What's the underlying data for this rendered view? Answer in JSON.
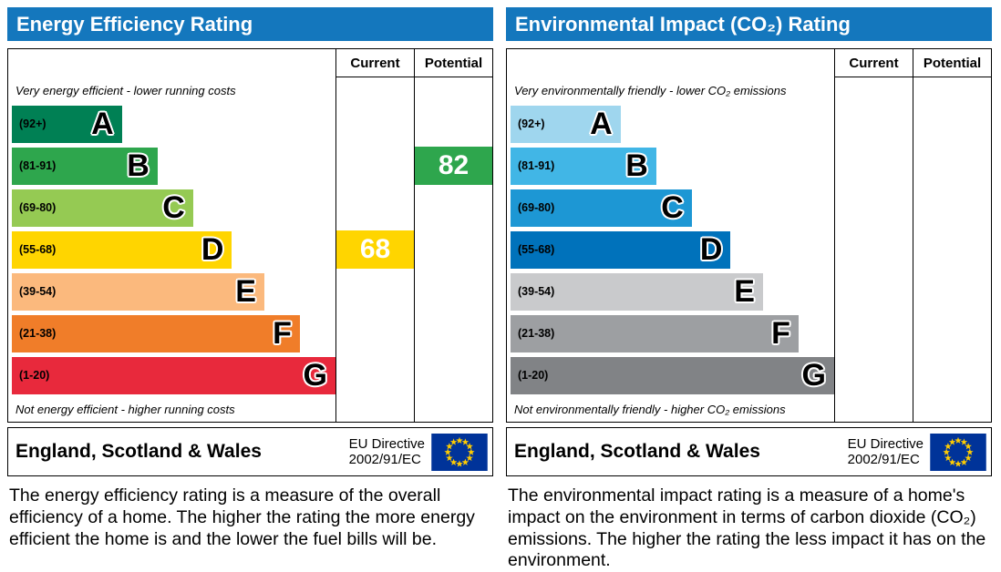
{
  "colors": {
    "header_blue": "#1477bd",
    "flag_background": "#003399",
    "flag_stars": "#ffcc00"
  },
  "charts": [
    {
      "title": "Energy Efficiency Rating",
      "current_label": "Current",
      "potential_label": "Potential",
      "top_caption": "Very energy efficient - lower running costs",
      "bottom_caption": "Not energy efficient - higher running costs",
      "bands": [
        {
          "range": "(92+)",
          "letter": "A",
          "color": "#008054",
          "width_pct": 34
        },
        {
          "range": "(81-91)",
          "letter": "B",
          "color": "#2ea64d",
          "width_pct": 45
        },
        {
          "range": "(69-80)",
          "letter": "C",
          "color": "#95ca53",
          "width_pct": 56
        },
        {
          "range": "(55-68)",
          "letter": "D",
          "color": "#ffd500",
          "width_pct": 68
        },
        {
          "range": "(39-54)",
          "letter": "E",
          "color": "#fbb97d",
          "width_pct": 78
        },
        {
          "range": "(21-38)",
          "letter": "F",
          "color": "#f07d29",
          "width_pct": 89
        },
        {
          "range": "(1-20)",
          "letter": "G",
          "color": "#e8293c",
          "width_pct": 100
        }
      ],
      "current_indicator": {
        "value": "68",
        "band_index": 3,
        "band": "D",
        "color": "#ffd500"
      },
      "potential_indicator": {
        "value": "82",
        "band_index": 1,
        "band": "B",
        "color": "#2ea64d"
      },
      "footer_region": "England, Scotland & Wales",
      "footer_directive_line1": "EU Directive",
      "footer_directive_line2": "2002/91/EC",
      "description": "The energy efficiency rating is a measure of the overall efficiency of a home. The higher the rating the more energy efficient the home is and the lower the fuel bills will be."
    },
    {
      "title": "Environmental Impact (CO₂) Rating",
      "current_label": "Current",
      "potential_label": "Potential",
      "top_caption": "Very environmentally friendly - lower CO₂ emissions",
      "bottom_caption": "Not environmentally friendly - higher CO₂ emissions",
      "bands": [
        {
          "range": "(92+)",
          "letter": "A",
          "color": "#9fd6ee",
          "width_pct": 34
        },
        {
          "range": "(81-91)",
          "letter": "B",
          "color": "#41b6e6",
          "width_pct": 45
        },
        {
          "range": "(69-80)",
          "letter": "C",
          "color": "#1d97d4",
          "width_pct": 56
        },
        {
          "range": "(55-68)",
          "letter": "D",
          "color": "#0072bb",
          "width_pct": 68
        },
        {
          "range": "(39-54)",
          "letter": "E",
          "color": "#c9cacc",
          "width_pct": 78
        },
        {
          "range": "(21-38)",
          "letter": "F",
          "color": "#9d9fa2",
          "width_pct": 89
        },
        {
          "range": "(1-20)",
          "letter": "G",
          "color": "#818386",
          "width_pct": 100
        }
      ],
      "current_indicator": null,
      "potential_indicator": null,
      "footer_region": "England, Scotland & Wales",
      "footer_directive_line1": "EU Directive",
      "footer_directive_line2": "2002/91/EC",
      "description": "The environmental impact rating is a measure of a home's impact on the environment in terms of carbon dioxide (CO₂) emissions. The higher the rating the less impact it has on the environment."
    }
  ],
  "chart_data": [
    {
      "type": "bar",
      "title": "Energy Efficiency Rating",
      "categories": [
        "A (92+)",
        "B (81-91)",
        "C (69-80)",
        "D (55-68)",
        "E (39-54)",
        "F (21-38)",
        "G (1-20)"
      ],
      "values": [
        34,
        45,
        56,
        68,
        78,
        89,
        100
      ],
      "value_note": "bar widths are decorative (percent of band area); bands are rating ranges",
      "current_rating": 68,
      "current_band": "D",
      "potential_rating": 82,
      "potential_band": "B",
      "xlabel": "",
      "ylabel": ""
    },
    {
      "type": "bar",
      "title": "Environmental Impact (CO₂) Rating",
      "categories": [
        "A (92+)",
        "B (81-91)",
        "C (69-80)",
        "D (55-68)",
        "E (39-54)",
        "F (21-38)",
        "G (1-20)"
      ],
      "values": [
        34,
        45,
        56,
        68,
        78,
        89,
        100
      ],
      "value_note": "bar widths are decorative (percent of band area); bands are rating ranges",
      "current_rating": null,
      "current_band": null,
      "potential_rating": null,
      "potential_band": null,
      "xlabel": "",
      "ylabel": ""
    }
  ]
}
